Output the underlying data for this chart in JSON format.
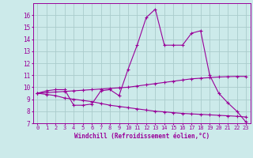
{
  "xlabel": "Windchill (Refroidissement éolien,°C)",
  "ylabel": "",
  "background_color": "#cceaea",
  "grid_color": "#aacccc",
  "line_color": "#990099",
  "xlim": [
    -0.5,
    23.5
  ],
  "ylim": [
    7,
    17
  ],
  "xticks": [
    0,
    1,
    2,
    3,
    4,
    5,
    6,
    7,
    8,
    9,
    10,
    11,
    12,
    13,
    14,
    15,
    16,
    17,
    18,
    19,
    20,
    21,
    22,
    23
  ],
  "yticks": [
    7,
    8,
    9,
    10,
    11,
    12,
    13,
    14,
    15,
    16
  ],
  "line1_x": [
    0,
    1,
    2,
    3,
    4,
    5,
    6,
    7,
    8,
    9,
    10,
    11,
    12,
    13,
    14,
    15,
    16,
    17,
    18,
    19,
    20,
    21,
    22,
    23
  ],
  "line1_y": [
    9.5,
    9.7,
    9.8,
    9.8,
    8.5,
    8.5,
    8.6,
    9.7,
    9.8,
    9.3,
    11.5,
    13.5,
    15.8,
    16.5,
    13.5,
    13.5,
    13.5,
    14.5,
    14.7,
    11.0,
    9.5,
    8.7,
    8.0,
    7.1
  ],
  "line2_x": [
    0,
    1,
    2,
    3,
    4,
    5,
    6,
    7,
    8,
    9,
    10,
    11,
    12,
    13,
    14,
    15,
    16,
    17,
    18,
    19,
    20,
    21,
    22,
    23
  ],
  "line2_y": [
    9.5,
    9.55,
    9.6,
    9.65,
    9.7,
    9.75,
    9.8,
    9.85,
    9.9,
    9.95,
    10.0,
    10.1,
    10.2,
    10.3,
    10.4,
    10.5,
    10.6,
    10.7,
    10.75,
    10.8,
    10.85,
    10.88,
    10.9,
    10.9
  ],
  "line3_x": [
    0,
    1,
    2,
    3,
    4,
    5,
    6,
    7,
    8,
    9,
    10,
    11,
    12,
    13,
    14,
    15,
    16,
    17,
    18,
    19,
    20,
    21,
    22,
    23
  ],
  "line3_y": [
    9.5,
    9.4,
    9.3,
    9.1,
    9.0,
    8.9,
    8.8,
    8.65,
    8.5,
    8.4,
    8.3,
    8.2,
    8.1,
    8.0,
    7.95,
    7.88,
    7.82,
    7.78,
    7.74,
    7.7,
    7.66,
    7.62,
    7.58,
    7.52
  ]
}
